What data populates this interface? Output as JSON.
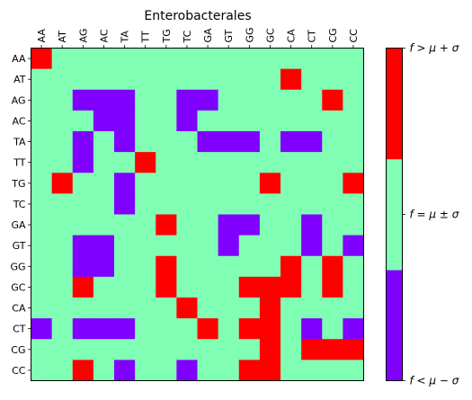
{
  "chart_data": {
    "type": "heatmap",
    "title": "Enterobacterales",
    "x_categories": [
      "AA",
      "AT",
      "AG",
      "AC",
      "TA",
      "TT",
      "TG",
      "TC",
      "GA",
      "GT",
      "GG",
      "GC",
      "CA",
      "CT",
      "CG",
      "CC"
    ],
    "y_categories": [
      "AA",
      "AT",
      "AG",
      "AC",
      "TA",
      "TT",
      "TG",
      "TC",
      "GA",
      "GT",
      "GG",
      "GC",
      "CA",
      "CT",
      "CG",
      "CC"
    ],
    "value_legend": {
      "-1": "low",
      "0": "mid",
      "1": "high"
    },
    "values": [
      [
        1,
        0,
        0,
        0,
        0,
        0,
        0,
        0,
        0,
        0,
        0,
        0,
        0,
        0,
        0,
        0
      ],
      [
        0,
        0,
        0,
        0,
        0,
        0,
        0,
        0,
        0,
        0,
        0,
        0,
        1,
        0,
        0,
        0
      ],
      [
        0,
        0,
        -1,
        -1,
        -1,
        0,
        0,
        -1,
        -1,
        0,
        0,
        0,
        0,
        0,
        1,
        0
      ],
      [
        0,
        0,
        0,
        -1,
        -1,
        0,
        0,
        -1,
        0,
        0,
        0,
        0,
        0,
        0,
        0,
        0
      ],
      [
        0,
        0,
        -1,
        0,
        -1,
        0,
        0,
        0,
        -1,
        -1,
        -1,
        0,
        -1,
        -1,
        0,
        0
      ],
      [
        0,
        0,
        -1,
        0,
        0,
        1,
        0,
        0,
        0,
        0,
        0,
        0,
        0,
        0,
        0,
        0
      ],
      [
        0,
        1,
        0,
        0,
        -1,
        0,
        0,
        0,
        0,
        0,
        0,
        1,
        0,
        0,
        0,
        1
      ],
      [
        0,
        0,
        0,
        0,
        -1,
        0,
        0,
        0,
        0,
        0,
        0,
        0,
        0,
        0,
        0,
        0
      ],
      [
        0,
        0,
        0,
        0,
        0,
        0,
        1,
        0,
        0,
        -1,
        -1,
        0,
        0,
        -1,
        0,
        0
      ],
      [
        0,
        0,
        -1,
        -1,
        0,
        0,
        0,
        0,
        0,
        -1,
        0,
        0,
        0,
        -1,
        0,
        -1
      ],
      [
        0,
        0,
        -1,
        -1,
        0,
        0,
        1,
        0,
        0,
        0,
        0,
        0,
        1,
        0,
        1,
        0
      ],
      [
        0,
        0,
        1,
        0,
        0,
        0,
        1,
        0,
        0,
        0,
        1,
        1,
        1,
        0,
        1,
        0
      ],
      [
        0,
        0,
        0,
        0,
        0,
        0,
        0,
        1,
        0,
        0,
        0,
        1,
        0,
        0,
        0,
        0
      ],
      [
        -1,
        0,
        -1,
        -1,
        -1,
        0,
        0,
        0,
        1,
        0,
        1,
        1,
        0,
        -1,
        0,
        -1
      ],
      [
        0,
        0,
        0,
        0,
        0,
        0,
        0,
        0,
        0,
        0,
        0,
        1,
        0,
        1,
        1,
        1
      ],
      [
        0,
        0,
        1,
        0,
        -1,
        0,
        0,
        -1,
        0,
        0,
        1,
        1,
        0,
        0,
        0,
        0
      ]
    ],
    "colorbar": {
      "colors": [
        "#8000ff",
        "#80ffb4",
        "#ff0000"
      ],
      "labels": [
        "f < μ − σ",
        "f = μ ± σ",
        "f > μ + σ"
      ]
    }
  }
}
